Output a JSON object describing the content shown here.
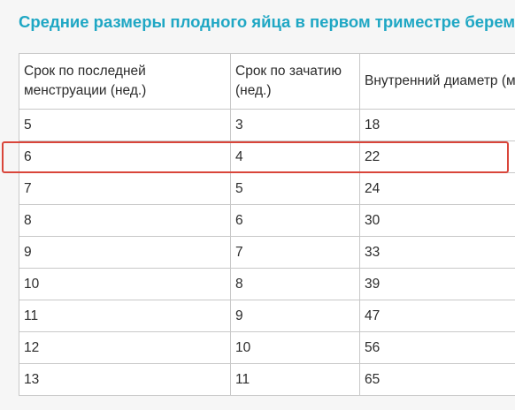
{
  "title": "Средние размеры плодного яйца в первом триместре беременн",
  "table": {
    "headers": [
      "Срок по последней менструации (нед.)",
      "Срок по зачатию (нед.)",
      "Внутренний диаметр (мм)"
    ],
    "rows": [
      [
        "5",
        "3",
        "18"
      ],
      [
        "6",
        "4",
        "22"
      ],
      [
        "7",
        "5",
        "24"
      ],
      [
        "8",
        "6",
        "30"
      ],
      [
        "9",
        "7",
        "33"
      ],
      [
        "10",
        "8",
        "39"
      ],
      [
        "11",
        "9",
        "47"
      ],
      [
        "12",
        "10",
        "56"
      ],
      [
        "13",
        "11",
        "65"
      ]
    ]
  },
  "highlight_color": "#d9453a",
  "title_color": "#1fa7c4"
}
